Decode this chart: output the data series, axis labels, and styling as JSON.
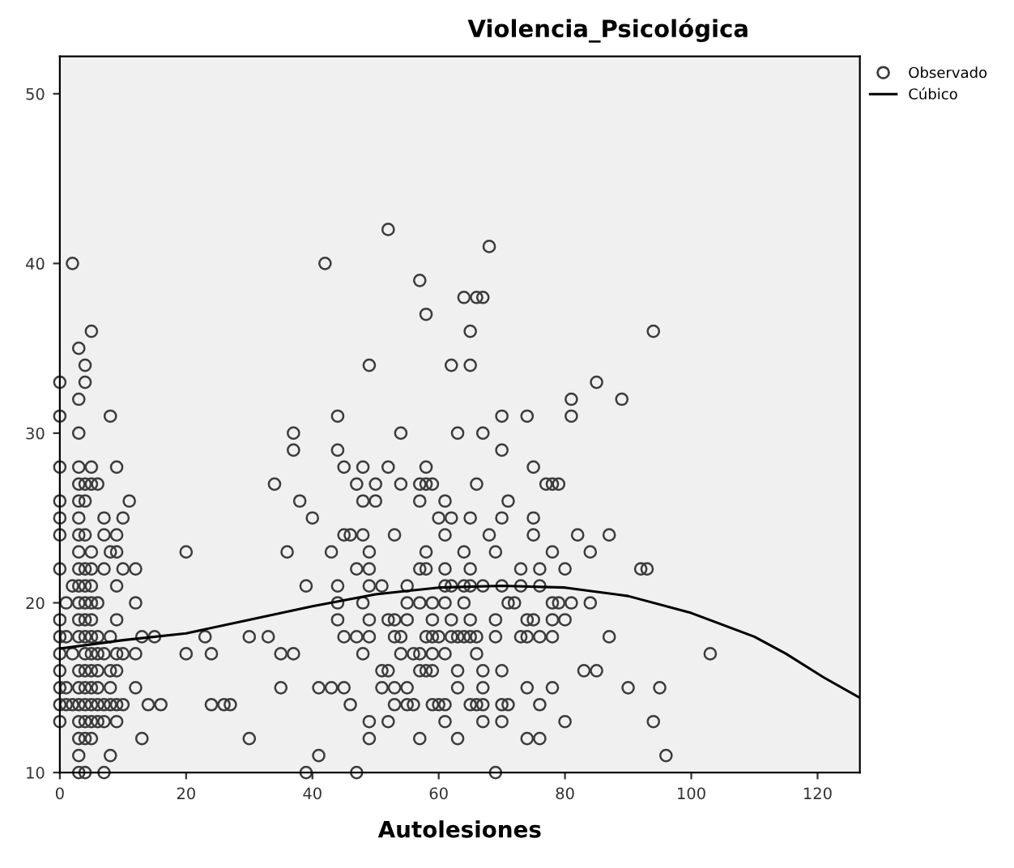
{
  "chart_data": {
    "type": "scatter",
    "title": "Violencia_Psicológica",
    "xlabel": "Autolesiones",
    "xlim": [
      0,
      126.7
    ],
    "ylim": [
      10,
      52.2
    ],
    "xticks": [
      0,
      20,
      40,
      60,
      80,
      100,
      120
    ],
    "yticks": [
      10,
      20,
      30,
      40,
      50
    ],
    "grid": false,
    "legend": "top right",
    "marker": "circle",
    "series": [
      {
        "name": "Observado",
        "color": "#3c3c3c",
        "x": [
          52,
          68,
          2,
          42,
          57,
          64,
          66,
          67,
          58,
          5,
          65,
          94,
          3,
          4,
          49,
          62,
          65,
          0,
          4,
          85,
          3,
          81,
          89,
          0,
          8,
          44,
          70,
          74,
          81,
          3,
          37,
          54,
          63,
          67,
          37,
          44,
          70,
          0,
          3,
          5,
          9,
          45,
          48,
          52,
          58,
          75,
          3,
          4,
          5,
          6,
          34,
          47,
          50,
          54,
          57,
          58,
          59,
          66,
          77,
          78,
          79,
          0,
          3,
          4,
          11,
          38,
          48,
          50,
          57,
          61,
          71,
          0,
          3,
          7,
          10,
          40,
          60,
          62,
          65,
          70,
          75,
          0,
          3,
          4,
          7,
          9,
          45,
          46,
          48,
          53,
          61,
          68,
          75,
          82,
          87,
          3,
          5,
          8,
          9,
          20,
          36,
          43,
          49,
          58,
          64,
          69,
          78,
          84,
          0,
          3,
          4,
          5,
          7,
          10,
          12,
          47,
          49,
          57,
          58,
          61,
          65,
          73,
          76,
          80,
          92,
          93,
          2,
          3,
          4,
          5,
          9,
          39,
          44,
          49,
          51,
          55,
          61,
          62,
          64,
          65,
          67,
          70,
          73,
          76,
          1,
          3,
          4,
          5,
          6,
          12,
          44,
          48,
          55,
          57,
          59,
          61,
          64,
          71,
          72,
          78,
          79,
          81,
          84,
          0,
          3,
          4,
          5,
          9,
          44,
          49,
          52,
          53,
          55,
          59,
          62,
          65,
          69,
          74,
          75,
          78,
          80,
          0,
          1,
          3,
          4,
          5,
          6,
          8,
          13,
          15,
          23,
          30,
          33,
          45,
          47,
          49,
          53,
          54,
          58,
          59,
          60,
          62,
          63,
          64,
          65,
          66,
          69,
          73,
          74,
          76,
          78,
          87,
          0,
          2,
          4,
          5,
          6,
          7,
          9,
          10,
          12,
          20,
          24,
          35,
          37,
          48,
          54,
          56,
          57,
          59,
          61,
          66,
          103,
          0,
          3,
          4,
          5,
          6,
          8,
          9,
          51,
          52,
          57,
          58,
          59,
          63,
          67,
          70,
          83,
          85,
          0,
          1,
          3,
          4,
          5,
          6,
          8,
          12,
          35,
          41,
          43,
          45,
          51,
          53,
          55,
          63,
          67,
          74,
          78,
          90,
          95,
          0,
          1,
          2,
          3,
          4,
          5,
          6,
          7,
          8,
          9,
          10,
          14,
          16,
          24,
          26,
          27,
          46,
          53,
          55,
          56,
          59,
          60,
          61,
          65,
          66,
          67,
          70,
          71,
          76,
          0,
          3,
          4,
          5,
          6,
          7,
          9,
          49,
          52,
          61,
          67,
          70,
          80,
          94,
          3,
          4,
          5,
          13,
          30,
          49,
          57,
          63,
          74,
          76,
          3,
          8,
          41,
          96,
          3,
          4,
          7,
          39,
          47,
          69
        ],
        "values": [
          42,
          41,
          40,
          40,
          39,
          38,
          38,
          38,
          37,
          36,
          36,
          36,
          35,
          34,
          34,
          34,
          34,
          33,
          33,
          33,
          32,
          32,
          32,
          31,
          31,
          31,
          31,
          31,
          31,
          30,
          30,
          30,
          30,
          30,
          29,
          29,
          29,
          28,
          28,
          28,
          28,
          28,
          28,
          28,
          28,
          28,
          27,
          27,
          27,
          27,
          27,
          27,
          27,
          27,
          27,
          27,
          27,
          27,
          27,
          27,
          27,
          26,
          26,
          26,
          26,
          26,
          26,
          26,
          26,
          26,
          26,
          25,
          25,
          25,
          25,
          25,
          25,
          25,
          25,
          25,
          25,
          24,
          24,
          24,
          24,
          24,
          24,
          24,
          24,
          24,
          24,
          24,
          24,
          24,
          24,
          23,
          23,
          23,
          23,
          23,
          23,
          23,
          23,
          23,
          23,
          23,
          23,
          23,
          22,
          22,
          22,
          22,
          22,
          22,
          22,
          22,
          22,
          22,
          22,
          22,
          22,
          22,
          22,
          22,
          22,
          22,
          21,
          21,
          21,
          21,
          21,
          21,
          21,
          21,
          21,
          21,
          21,
          21,
          21,
          21,
          21,
          21,
          21,
          21,
          20,
          20,
          20,
          20,
          20,
          20,
          20,
          20,
          20,
          20,
          20,
          20,
          20,
          20,
          20,
          20,
          20,
          20,
          20,
          19,
          19,
          19,
          19,
          19,
          19,
          19,
          19,
          19,
          19,
          19,
          19,
          19,
          19,
          19,
          19,
          19,
          19,
          18,
          18,
          18,
          18,
          18,
          18,
          18,
          18,
          18,
          18,
          18,
          18,
          18,
          18,
          18,
          18,
          18,
          18,
          18,
          18,
          18,
          18,
          18,
          18,
          18,
          18,
          18,
          18,
          18,
          18,
          18,
          17,
          17,
          17,
          17,
          17,
          17,
          17,
          17,
          17,
          17,
          17,
          17,
          17,
          17,
          17,
          17,
          17,
          17,
          17,
          17,
          17,
          16,
          16,
          16,
          16,
          16,
          16,
          16,
          16,
          16,
          16,
          16,
          16,
          16,
          16,
          16,
          16,
          16,
          15,
          15,
          15,
          15,
          15,
          15,
          15,
          15,
          15,
          15,
          15,
          15,
          15,
          15,
          15,
          15,
          15,
          15,
          15,
          15,
          15,
          14,
          14,
          14,
          14,
          14,
          14,
          14,
          14,
          14,
          14,
          14,
          14,
          14,
          14,
          14,
          14,
          14,
          14,
          14,
          14,
          14,
          14,
          14,
          14,
          14,
          14,
          14,
          14,
          14,
          13,
          13,
          13,
          13,
          13,
          13,
          13,
          13,
          13,
          13,
          13,
          13,
          13,
          13,
          12,
          12,
          12,
          12,
          12,
          12,
          12,
          12,
          12,
          12,
          11,
          11,
          11,
          11,
          10,
          10,
          10,
          10,
          10,
          10
        ]
      },
      {
        "name": "Cúbico",
        "type": "line",
        "color": "#000000",
        "marker": "none",
        "line_style": "solid",
        "x": [
          0,
          10,
          20,
          30,
          40,
          50,
          60,
          70,
          80,
          90,
          100,
          110,
          115,
          121,
          126.7
        ],
        "values": [
          17.3,
          17.8,
          18.2,
          19.0,
          19.8,
          20.5,
          20.9,
          21.0,
          20.9,
          20.4,
          19.4,
          18.0,
          17.0,
          15.6,
          14.4
        ]
      }
    ]
  }
}
